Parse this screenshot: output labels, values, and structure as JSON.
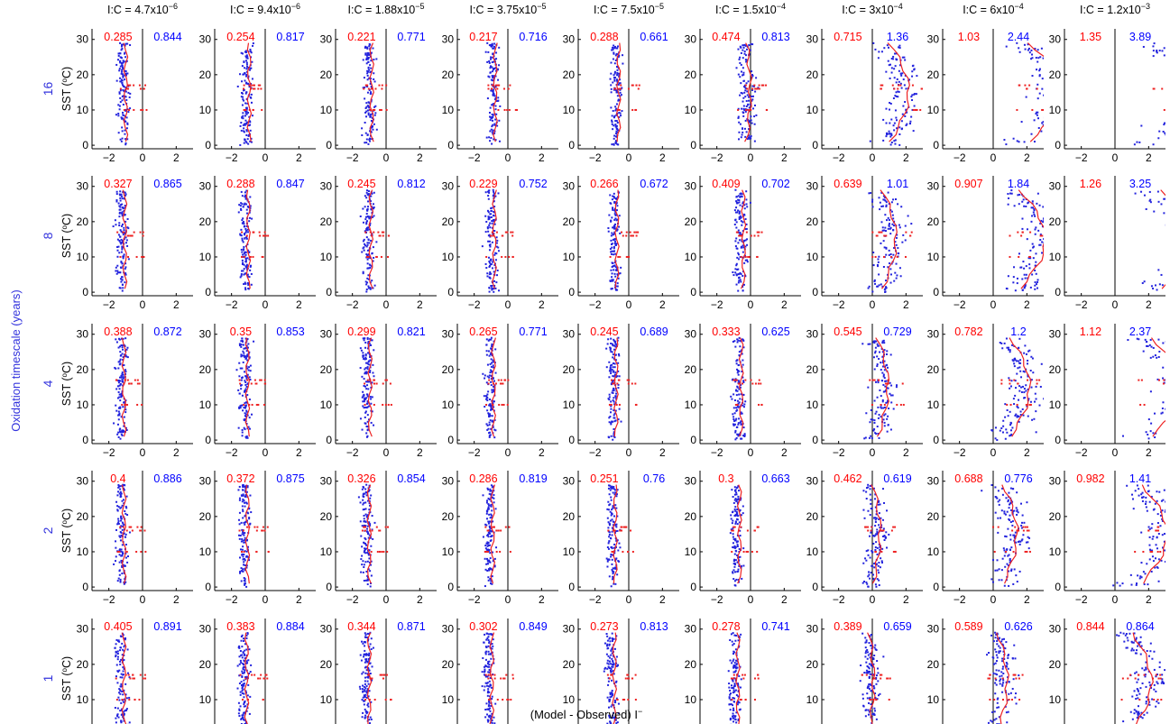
{
  "figure": {
    "xlabel_prefix": "(Model - Observed) I",
    "xlabel_sup": "−",
    "outer_ylabel": "Oxidation timescale (years)",
    "panel_ylabel": "SST (",
    "panel_ylabel_sup": "o",
    "panel_ylabel_suffix": "C)",
    "colors": {
      "rmse_red": "#ff0000",
      "rmse_blue": "#0000ff",
      "points_blue": "#2222dd",
      "points_red": "#ee2222",
      "axis": "#000000",
      "row_label": "#3333dd"
    }
  },
  "chart_data": {
    "type": "scatter",
    "columns": [
      {
        "prefix": "I:C = ",
        "mant": "4.7x10",
        "exp": "−6",
        "value": 4.7e-06
      },
      {
        "prefix": "I:C = ",
        "mant": "9.4x10",
        "exp": "−6",
        "value": 9.4e-06
      },
      {
        "prefix": "I:C = ",
        "mant": "1.88x10",
        "exp": "−5",
        "value": 1.88e-05
      },
      {
        "prefix": "I:C = ",
        "mant": "3.75x10",
        "exp": "−5",
        "value": 3.75e-05
      },
      {
        "prefix": "I:C = ",
        "mant": "7.5x10",
        "exp": "−5",
        "value": 7.5e-05
      },
      {
        "prefix": "I:C = ",
        "mant": "1.5x10",
        "exp": "−4",
        "value": 0.00015
      },
      {
        "prefix": "I:C = ",
        "mant": "3x10",
        "exp": "−4",
        "value": 0.0003
      },
      {
        "prefix": "I:C = ",
        "mant": "6x10",
        "exp": "−4",
        "value": 0.0006
      },
      {
        "prefix": "I:C = ",
        "mant": "1.2x10",
        "exp": "−3",
        "value": 0.0012
      }
    ],
    "rows": [
      {
        "label": "16",
        "red": [
          "0.285",
          "0.254",
          "0.221",
          "0.217",
          "0.288",
          "0.474",
          "0.715",
          "1.03",
          "1.35"
        ],
        "blue": [
          "0.844",
          "0.817",
          "0.771",
          "0.716",
          "0.661",
          "0.813",
          "1.36",
          "2.44",
          "3.89"
        ]
      },
      {
        "label": "8",
        "red": [
          "0.327",
          "0.288",
          "0.245",
          "0.229",
          "0.266",
          "0.409",
          "0.639",
          "0.907",
          "1.26"
        ],
        "blue": [
          "0.865",
          "0.847",
          "0.812",
          "0.752",
          "0.672",
          "0.702",
          "1.01",
          "1.84",
          "3.25"
        ]
      },
      {
        "label": "4",
        "red": [
          "0.388",
          "0.35",
          "0.299",
          "0.265",
          "0.245",
          "0.333",
          "0.545",
          "0.782",
          "1.12"
        ],
        "blue": [
          "0.872",
          "0.853",
          "0.821",
          "0.771",
          "0.689",
          "0.625",
          "0.729",
          "1.2",
          "2.37"
        ]
      },
      {
        "label": "2",
        "red": [
          "0.4",
          "0.372",
          "0.326",
          "0.286",
          "0.251",
          "0.3",
          "0.462",
          "0.688",
          "0.982"
        ],
        "blue": [
          "0.886",
          "0.875",
          "0.854",
          "0.819",
          "0.76",
          "0.663",
          "0.619",
          "0.776",
          "1.41"
        ]
      },
      {
        "label": "1",
        "red": [
          "0.405",
          "0.383",
          "0.344",
          "0.302",
          "0.273",
          "0.278",
          "0.389",
          "0.589",
          "0.844"
        ],
        "blue": [
          "0.891",
          "0.884",
          "0.871",
          "0.849",
          "0.813",
          "0.741",
          "0.659",
          "0.626",
          "0.864"
        ]
      }
    ],
    "x_ticks": [
      "−2",
      "0",
      "2"
    ],
    "y_ticks": [
      "0",
      "10",
      "20",
      "30"
    ],
    "xlim": [
      -3,
      3
    ],
    "ylim": [
      -1,
      33
    ],
    "grid": false,
    "profile_red_offsets": [
      [
        -0.9,
        -0.85,
        -0.75,
        -0.65,
        -0.5,
        -0.15,
        1.0,
        2.0,
        2.8
      ],
      [
        -0.95,
        -0.9,
        -0.8,
        -0.7,
        -0.6,
        -0.35,
        0.6,
        1.5,
        2.5
      ],
      [
        -1.0,
        -0.95,
        -0.85,
        -0.75,
        -0.65,
        -0.45,
        0.35,
        1.0,
        2.0
      ],
      [
        -1.0,
        -0.95,
        -0.9,
        -0.8,
        -0.7,
        -0.55,
        0.1,
        0.6,
        1.5
      ],
      [
        -1.0,
        -1.0,
        -0.9,
        -0.85,
        -0.75,
        -0.65,
        -0.1,
        0.3,
        1.0
      ]
    ]
  }
}
